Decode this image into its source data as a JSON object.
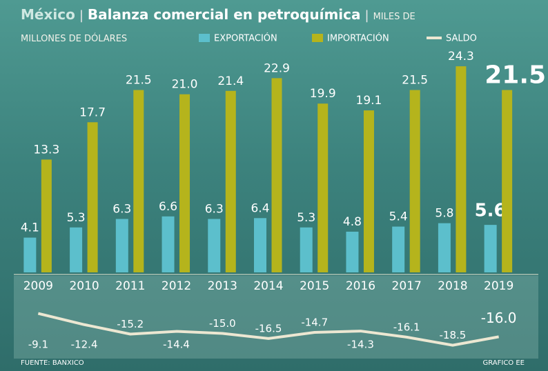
{
  "chart_data": {
    "type": "bar-line",
    "title": "Balanza comercial en petroquímica",
    "country": "México",
    "unit": "MILES DE MILLONES DE DÓLARES",
    "source": "FUENTE: BANXICO",
    "credit": "GRAFICO EE",
    "categories": [
      "2009",
      "2010",
      "2011",
      "2012",
      "2013",
      "2014",
      "2015",
      "2016",
      "2017",
      "2018",
      "2019"
    ],
    "series": [
      {
        "name": "EXPORTACIÓN",
        "color": "#5cbfcc",
        "type": "bar",
        "values": [
          4.1,
          5.3,
          6.3,
          6.6,
          6.3,
          6.4,
          5.3,
          4.8,
          5.4,
          5.8,
          5.6
        ],
        "value_labels": [
          "4.1",
          "5.3",
          "6.3",
          "6.6",
          "6.3",
          "6.4",
          "5.3",
          "4.8",
          "5.4",
          "5.8",
          "5.6"
        ]
      },
      {
        "name": "IMPORTACIÓN",
        "color": "#b5b41c",
        "type": "bar",
        "values": [
          13.3,
          17.7,
          21.5,
          21.0,
          21.4,
          22.9,
          19.9,
          19.1,
          21.5,
          24.3,
          21.5
        ],
        "value_labels": [
          "13.3",
          "17.7",
          "21.5",
          "21.0",
          "21.4",
          "22.9",
          "19.9",
          "19.1",
          "21.5",
          "24.3",
          "21.5"
        ]
      },
      {
        "name": "SALDO",
        "color": "#ece7d2",
        "type": "line",
        "values": [
          -9.1,
          -12.4,
          -15.2,
          -14.4,
          -15.0,
          -16.5,
          -14.7,
          -14.3,
          -16.1,
          -18.5,
          -16.0
        ],
        "value_labels": [
          "-9.1",
          "-12.4",
          "-15.2",
          "-14.4",
          "-15.0",
          "-16.5",
          "-14.7",
          "-14.3",
          "-16.1",
          "-18.5",
          "-16.0"
        ]
      }
    ]
  }
}
